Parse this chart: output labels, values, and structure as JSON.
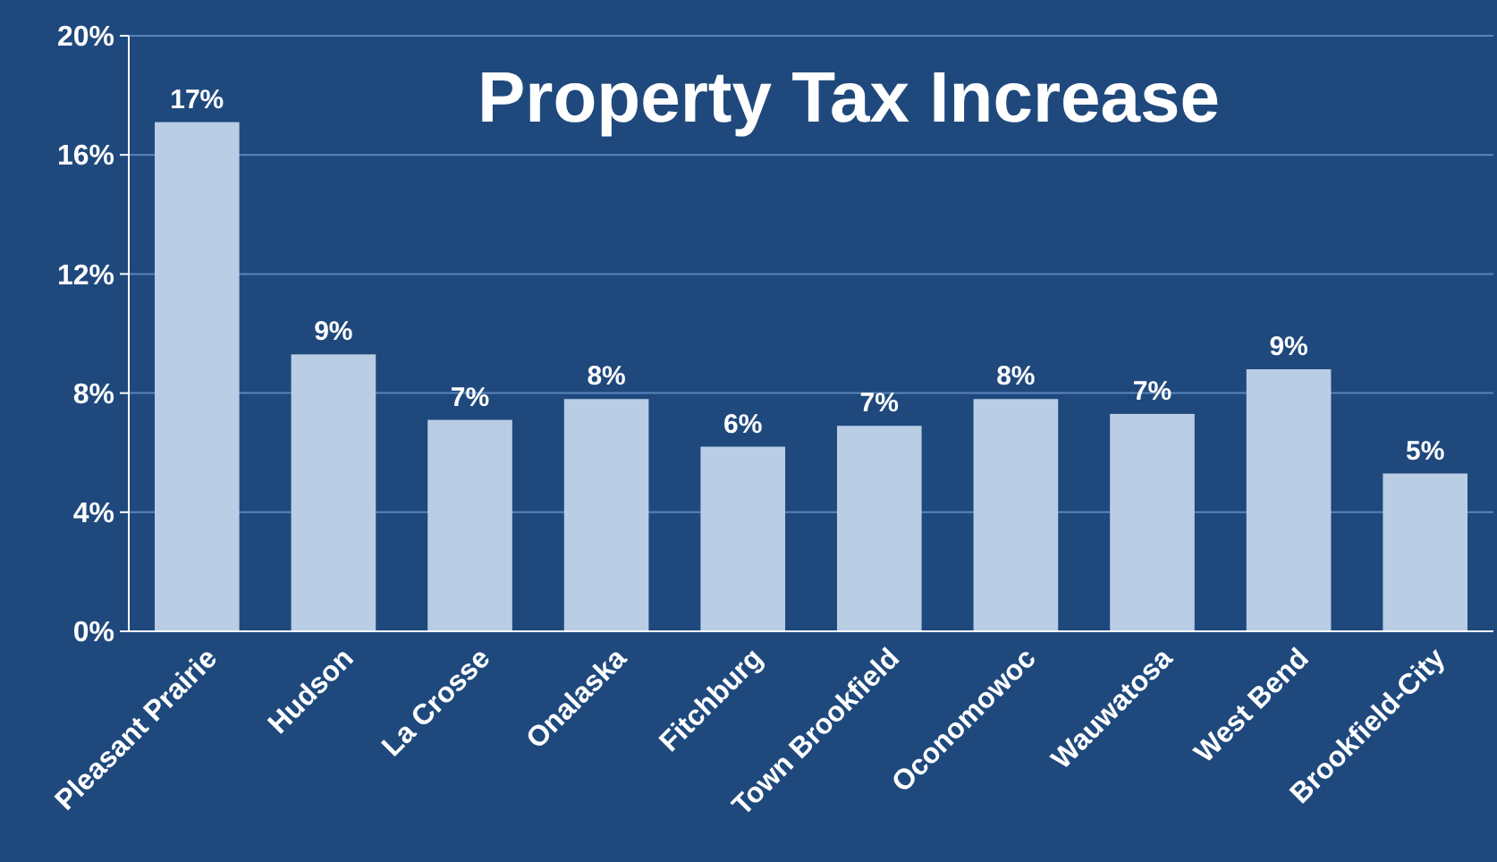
{
  "chart_data": {
    "type": "bar",
    "title": "Property Tax Increase",
    "categories": [
      "Pleasant Prairie",
      "Hudson",
      "La Crosse",
      "Onalaska",
      "Fitchburg",
      "Town Brookfield",
      "Oconomowoc",
      "Wauwatosa",
      "West Bend",
      "Brookfield-City"
    ],
    "values": [
      17.1,
      9.3,
      7.1,
      7.8,
      6.2,
      6.9,
      7.8,
      7.3,
      8.8,
      5.3
    ],
    "value_labels": [
      "17%",
      "9%",
      "7%",
      "8%",
      "6%",
      "7%",
      "8%",
      "7%",
      "9%",
      "5%"
    ],
    "color": "#b9cde5",
    "ylim": [
      0,
      20
    ],
    "yticks": [
      {
        "value": 0,
        "label": "0%"
      },
      {
        "value": 4,
        "label": "4%"
      },
      {
        "value": 8,
        "label": "8%"
      },
      {
        "value": 12,
        "label": "12%"
      },
      {
        "value": 16,
        "label": "16%"
      },
      {
        "value": 20,
        "label": "20%"
      }
    ],
    "grid": "y"
  }
}
